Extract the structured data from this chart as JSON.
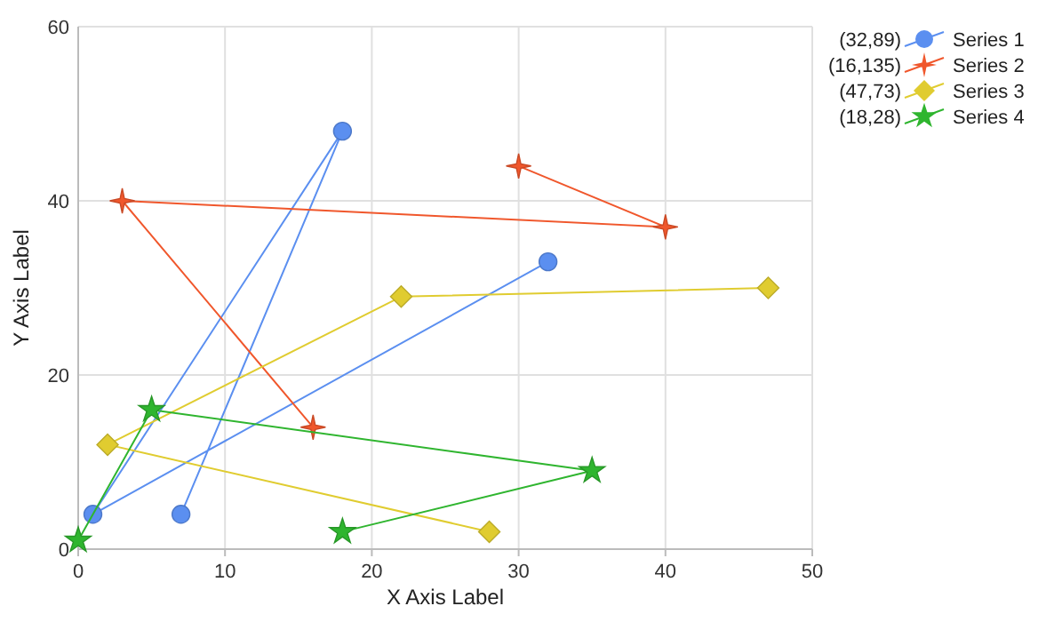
{
  "chart_data": {
    "type": "line",
    "xlabel": "X Axis Label",
    "ylabel": "Y Axis Label",
    "xlim": [
      0,
      50
    ],
    "xticks": [
      0,
      10,
      20,
      30,
      40,
      50
    ],
    "ylim": [
      0,
      60
    ],
    "yticks": [
      0,
      20,
      40,
      60
    ],
    "grid": true,
    "legend": "top right",
    "annotations": [
      "(32,89)",
      "(16,135)",
      "(47,73)",
      "(18,28)"
    ],
    "series": [
      {
        "name": "Series 1",
        "color": "#5b8ff0",
        "marker": "circle",
        "x": [
          7,
          18,
          1,
          32
        ],
        "values": [
          4,
          48,
          4,
          33
        ]
      },
      {
        "name": "Series 2",
        "color": "#f0572c",
        "marker": "cross",
        "x": [
          30,
          40,
          3,
          16
        ],
        "values": [
          44,
          37,
          40,
          14
        ]
      },
      {
        "name": "Series 3",
        "color": "#e0cc30",
        "marker": "diamond",
        "x": [
          28,
          2,
          22,
          47
        ],
        "values": [
          2,
          12,
          29,
          30
        ]
      },
      {
        "name": "Series 4",
        "color": "#2fb52f",
        "marker": "star",
        "x": [
          18,
          35,
          5,
          0
        ],
        "values": [
          2,
          9,
          16,
          1
        ]
      }
    ]
  }
}
